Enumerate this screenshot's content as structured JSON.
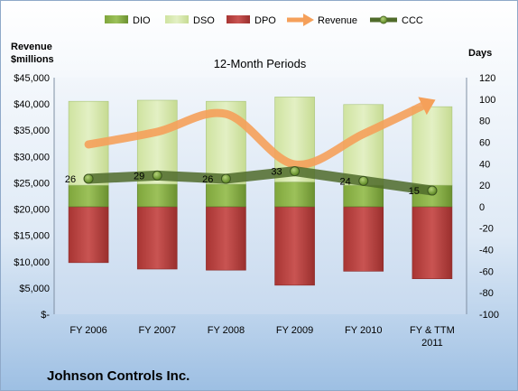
{
  "chart_data": {
    "type": "bar",
    "title": "12-Month Periods",
    "company": "Johnson Controls Inc.",
    "left_axis_label": [
      "Revenue",
      "$millions"
    ],
    "right_axis_label": "Days",
    "categories": [
      "FY 2006",
      "FY 2007",
      "FY 2008",
      "FY 2009",
      "FY 2010",
      "FY & TTM 2011"
    ],
    "left_axis": {
      "min": 0,
      "max": 45000,
      "step": 5000,
      "tick_labels": [
        "$-",
        "$5,000",
        "$10,000",
        "$15,000",
        "$20,000",
        "$25,000",
        "$30,000",
        "$35,000",
        "$40,000",
        "$45,000"
      ]
    },
    "right_axis": {
      "min": -100,
      "max": 120,
      "step": 20,
      "tick_labels": [
        "-100",
        "-80",
        "-60",
        "-40",
        "-20",
        "0",
        "20",
        "40",
        "60",
        "80",
        "100",
        "120"
      ]
    },
    "legend_position": "top",
    "grid": false,
    "series": [
      {
        "name": "DIO",
        "axis": "right",
        "kind": "stacked-bar",
        "values": [
          20,
          21,
          21,
          23,
          20,
          20
        ],
        "color": "#6e9a2f"
      },
      {
        "name": "DSO",
        "axis": "right",
        "kind": "stacked-bar",
        "values": [
          78,
          78,
          77,
          79,
          75,
          73
        ],
        "color": "#d5e8a8"
      },
      {
        "name": "DPO",
        "axis": "right",
        "kind": "negative-bar",
        "values": [
          -52,
          -58,
          -59,
          -73,
          -60,
          -67
        ],
        "color": "#b03a38"
      },
      {
        "name": "Revenue",
        "axis": "left",
        "kind": "line",
        "values": [
          32300,
          34700,
          38100,
          28500,
          34300,
          40500
        ],
        "color": "#f5a05a"
      },
      {
        "name": "CCC",
        "axis": "right",
        "kind": "line-markers",
        "values": [
          26,
          29,
          26,
          33,
          24,
          15
        ],
        "data_labels": [
          "26",
          "29",
          "26",
          "33",
          "24",
          "15"
        ],
        "color": "#4f6b2a"
      }
    ]
  }
}
